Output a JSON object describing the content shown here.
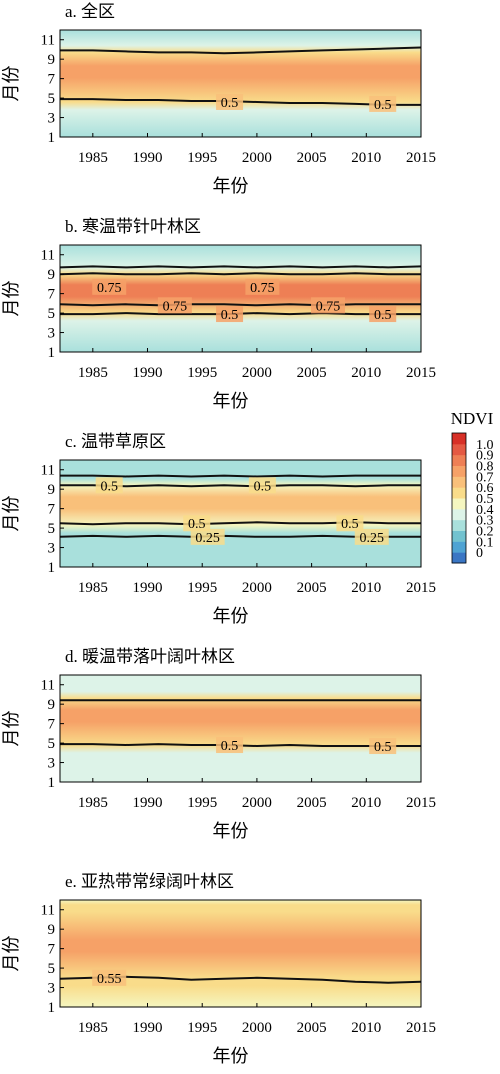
{
  "figure": {
    "colorbar": {
      "title": "NDVI",
      "ticks": [
        "1.0",
        "0.9",
        "0.8",
        "0.7",
        "0.6",
        "0.5",
        "0.4",
        "0.3",
        "0.2",
        "0.1",
        "0"
      ],
      "colors": [
        "#3a76c4",
        "#4fa3d3",
        "#72c2cf",
        "#a9e0dc",
        "#ddf3e8",
        "#f5f6c0",
        "#f9dc8a",
        "#f9c07a",
        "#f6a167",
        "#ee7f55",
        "#e45943",
        "#d73027"
      ]
    }
  },
  "chart_data": [
    {
      "type": "heatmap",
      "title": "a. 全区",
      "xlabel": "年份",
      "ylabel": "月份",
      "xlim": [
        1982,
        2015
      ],
      "ylim": [
        1,
        12
      ],
      "xticks": [
        "1985",
        "1990",
        "1995",
        "2000",
        "2005",
        "2010",
        "2015"
      ],
      "yticks": [
        "1",
        "3",
        "5",
        "7",
        "9",
        "11"
      ],
      "profile": {
        "winter": 0.28,
        "peak": 0.72,
        "peak_month": 7.7,
        "spring_month": 4.6,
        "fall_month": 9.7
      },
      "contours": [
        {
          "level": 0.5,
          "label": "0.5",
          "y": [
            4.9,
            4.9,
            4.8,
            4.8,
            4.7,
            4.7,
            4.6,
            4.5,
            4.5,
            4.4,
            4.3,
            4.3
          ]
        },
        {
          "level": 0.5,
          "label": "",
          "y": [
            9.9,
            9.9,
            9.8,
            9.7,
            9.7,
            9.6,
            9.7,
            9.8,
            9.9,
            10.0,
            10.1,
            10.2
          ]
        }
      ],
      "contour_labels": [
        {
          "text": "0.5",
          "x": 1997.5,
          "y": 4.6
        },
        {
          "text": "0.5",
          "x": 2011.5,
          "y": 4.4
        }
      ]
    },
    {
      "type": "heatmap",
      "title": "b. 寒温带针叶林区",
      "xlabel": "年份",
      "ylabel": "月份",
      "xlim": [
        1982,
        2015
      ],
      "ylim": [
        1,
        12
      ],
      "xticks": [
        "1985",
        "1990",
        "1995",
        "2000",
        "2005",
        "2010",
        "2015"
      ],
      "yticks": [
        "1",
        "3",
        "5",
        "7",
        "9",
        "11"
      ],
      "profile": {
        "winter": 0.25,
        "peak": 0.86,
        "peak_month": 7.3,
        "spring_month": 5.0,
        "fall_month": 9.0
      },
      "contours": [
        {
          "level": 0.75,
          "label": "0.75",
          "y": [
            9.0,
            9.1,
            9.0,
            9.0,
            9.1,
            9.0,
            9.1,
            9.0,
            9.0,
            9.1,
            9.0,
            9.0
          ]
        },
        {
          "level": 0.75,
          "label": "0.75",
          "y": [
            5.9,
            5.8,
            5.9,
            5.8,
            5.9,
            5.9,
            5.8,
            5.9,
            5.8,
            5.9,
            5.9,
            5.9
          ]
        },
        {
          "level": 0.5,
          "label": "0.5",
          "y": [
            4.9,
            4.9,
            5.0,
            4.9,
            4.9,
            4.9,
            5.0,
            4.9,
            5.0,
            4.9,
            4.9,
            4.9
          ]
        },
        {
          "level": 0.5,
          "label": "",
          "y": [
            9.7,
            9.8,
            9.7,
            9.8,
            9.7,
            9.8,
            9.7,
            9.8,
            9.7,
            9.8,
            9.7,
            9.8
          ]
        }
      ],
      "contour_labels": [
        {
          "text": "0.75",
          "x": 1986.5,
          "y": 7.7
        },
        {
          "text": "0.75",
          "x": 2000.5,
          "y": 7.7
        },
        {
          "text": "0.75",
          "x": 1992.5,
          "y": 5.8
        },
        {
          "text": "0.75",
          "x": 2006.5,
          "y": 5.8
        },
        {
          "text": "0.5",
          "x": 1997.5,
          "y": 4.9
        },
        {
          "text": "0.5",
          "x": 2011.5,
          "y": 4.9
        }
      ]
    },
    {
      "type": "heatmap",
      "title": "c. 温带草原区",
      "xlabel": "年份",
      "ylabel": "月份",
      "xlim": [
        1982,
        2015
      ],
      "ylim": [
        1,
        12
      ],
      "xticks": [
        "1985",
        "1990",
        "1995",
        "2000",
        "2005",
        "2010",
        "2015"
      ],
      "yticks": [
        "1",
        "3",
        "5",
        "7",
        "9",
        "11"
      ],
      "profile": {
        "winter": 0.2,
        "peak": 0.64,
        "peak_month": 7.6,
        "spring_month": 5.3,
        "fall_month": 9.4
      },
      "contours": [
        {
          "level": 0.5,
          "label": "0.5",
          "y": [
            9.4,
            9.4,
            9.3,
            9.4,
            9.3,
            9.4,
            9.3,
            9.4,
            9.4,
            9.3,
            9.4,
            9.4
          ]
        },
        {
          "level": 0.5,
          "label": "0.5",
          "y": [
            5.5,
            5.4,
            5.5,
            5.5,
            5.4,
            5.5,
            5.6,
            5.5,
            5.5,
            5.6,
            5.5,
            5.5
          ]
        },
        {
          "level": 0.25,
          "label": "0.25",
          "y": [
            4.1,
            4.2,
            4.1,
            4.2,
            4.1,
            4.2,
            4.1,
            4.1,
            4.2,
            4.1,
            4.1,
            4.1
          ]
        },
        {
          "level": 0.25,
          "label": "",
          "y": [
            10.4,
            10.4,
            10.3,
            10.4,
            10.3,
            10.4,
            10.3,
            10.4,
            10.3,
            10.4,
            10.4,
            10.4
          ]
        }
      ],
      "contour_labels": [
        {
          "text": "0.5",
          "x": 1986.5,
          "y": 9.4
        },
        {
          "text": "0.5",
          "x": 2000.5,
          "y": 9.4
        },
        {
          "text": "0.5",
          "x": 1994.5,
          "y": 5.5
        },
        {
          "text": "0.5",
          "x": 2008.5,
          "y": 5.5
        },
        {
          "text": "0.25",
          "x": 1995.5,
          "y": 4.1
        },
        {
          "text": "0.25",
          "x": 2010.5,
          "y": 4.1
        }
      ]
    },
    {
      "type": "heatmap",
      "title": "d. 暖温带落叶阔叶林区",
      "xlabel": "年份",
      "ylabel": "月份",
      "xlim": [
        1982,
        2015
      ],
      "ylim": [
        1,
        12
      ],
      "xticks": [
        "1985",
        "1990",
        "1995",
        "2000",
        "2005",
        "2010",
        "2015"
      ],
      "yticks": [
        "1",
        "3",
        "5",
        "7",
        "9",
        "11"
      ],
      "profile": {
        "winter": 0.3,
        "peak": 0.72,
        "peak_month": 7.8,
        "spring_month": 4.8,
        "fall_month": 9.6
      },
      "contours": [
        {
          "level": 0.5,
          "label": "0.5",
          "y": [
            4.9,
            4.9,
            4.8,
            4.9,
            4.8,
            4.8,
            4.7,
            4.8,
            4.7,
            4.7,
            4.7,
            4.7
          ]
        },
        {
          "level": 0.5,
          "label": "",
          "y": [
            9.4,
            9.4,
            9.4,
            9.4,
            9.4,
            9.4,
            9.4,
            9.4,
            9.4,
            9.4,
            9.4,
            9.4
          ]
        }
      ],
      "contour_labels": [
        {
          "text": "0.5",
          "x": 1997.5,
          "y": 4.8
        },
        {
          "text": "0.5",
          "x": 2011.5,
          "y": 4.7
        }
      ]
    },
    {
      "type": "heatmap",
      "title": "e. 亚热带常绿阔叶林区",
      "xlabel": "年份",
      "ylabel": "月份",
      "xlim": [
        1982,
        2015
      ],
      "ylim": [
        1,
        12
      ],
      "xticks": [
        "1985",
        "1990",
        "1995",
        "2000",
        "2005",
        "2010",
        "2015"
      ],
      "yticks": [
        "1",
        "3",
        "5",
        "7",
        "9",
        "11"
      ],
      "profile": {
        "winter": 0.48,
        "peak": 0.7,
        "peak_month": 7.3,
        "spring_month": 4.0,
        "fall_month": 10.8
      },
      "contours": [
        {
          "level": 0.55,
          "label": "0.55",
          "y": [
            3.9,
            4.0,
            4.1,
            4.0,
            3.8,
            3.9,
            4.0,
            3.9,
            3.8,
            3.6,
            3.5,
            3.6
          ]
        }
      ],
      "contour_labels": [
        {
          "text": "0.55",
          "x": 1986.5,
          "y": 4.0
        }
      ]
    }
  ]
}
